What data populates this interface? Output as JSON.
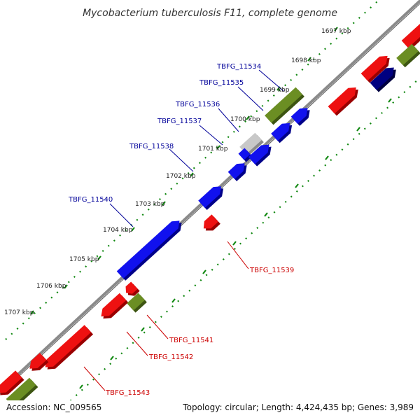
{
  "title": "Mycobacterium tuberculosis F11, complete genome",
  "footer": {
    "accession": "Accession: NC_009565",
    "topology": "Topology: circular; Length: 4,424,435 bp; Genes: 3,989"
  },
  "colors": {
    "gene_red": "#ee1111",
    "gene_blue": "#1111ee",
    "gene_olive": "#6b8e23",
    "gene_navy": "#000080",
    "gene_grey": "#c8c8c8",
    "label_blue": "#000099",
    "label_red": "#cc0000",
    "scale_dots": "#118811",
    "backbone": "#808080"
  },
  "scale": {
    "ticks": [
      "1697 kbp",
      "1698 kbp",
      "1699 kbp",
      "1700 kbp",
      "1701 kbp",
      "1702 kbp",
      "1703 kbp",
      "1704 kbp",
      "1705 kbp",
      "1706 kbp",
      "1707 kbp"
    ]
  },
  "gene_labels": {
    "l11534": "TBFG_11534",
    "l11535": "TBFG_11535",
    "l11536": "TBFG_11536",
    "l11537": "TBFG_11537",
    "l11538": "TBFG_11538",
    "l11540": "TBFG_11540",
    "l11539": "TBFG_11539",
    "l11541": "TBFG_11541",
    "l11542": "TBFG_11542",
    "l11543": "TBFG_11543"
  }
}
